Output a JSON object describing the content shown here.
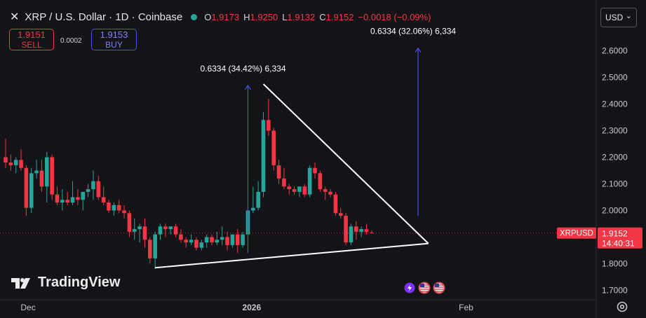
{
  "header": {
    "symbol_title": "XRP / U.S. Dollar · 1D · Coinbase",
    "ohlc": [
      {
        "k": "O",
        "v": "1.9173"
      },
      {
        "k": "H",
        "v": "1.9250"
      },
      {
        "k": "L",
        "v": "1.9132"
      },
      {
        "k": "C",
        "v": "1.9152"
      }
    ],
    "change": "−0.0018 (−0.09%)"
  },
  "trade": {
    "sell_price": "1.9151",
    "sell_label": "SELL",
    "buy_price": "1.9153",
    "buy_label": "BUY",
    "spread": "0.0002"
  },
  "currency": "USD",
  "brand": "TradingView",
  "colors": {
    "background": "#141418",
    "up": "#26a69a",
    "down": "#f23645",
    "measure": "#4b4df0",
    "trendline": "#ffffff",
    "price_tag": "#f23645"
  },
  "chart_data": {
    "type": "candlestick",
    "symbol": "XRPUSD",
    "timeframe": "1D",
    "x_ticks": [
      "Dec",
      "2026",
      "Feb"
    ],
    "y_ticks": [
      "1.7000",
      "1.8000",
      "1.9000",
      "2.0000",
      "2.1000",
      "2.2000",
      "2.3000",
      "2.4000",
      "2.5000",
      "2.6000"
    ],
    "ylim": [
      1.66,
      2.74
    ],
    "last_price": "1.9152",
    "last_label": "XRPUSD",
    "countdown": "14:40:31",
    "candles": [
      [
        2.2,
        2.27,
        2.16,
        2.18
      ],
      [
        2.18,
        2.21,
        2.15,
        2.17
      ],
      [
        2.17,
        2.2,
        2.14,
        2.19
      ],
      [
        2.19,
        2.23,
        2.15,
        2.16
      ],
      [
        2.16,
        2.17,
        1.98,
        2.01
      ],
      [
        2.01,
        2.16,
        1.99,
        2.14
      ],
      [
        2.14,
        2.19,
        2.12,
        2.15
      ],
      [
        2.15,
        2.19,
        2.07,
        2.09
      ],
      [
        2.09,
        2.22,
        2.03,
        2.2
      ],
      [
        2.2,
        2.21,
        2.04,
        2.06
      ],
      [
        2.06,
        2.09,
        2.02,
        2.03
      ],
      [
        2.03,
        2.08,
        2.0,
        2.04
      ],
      [
        2.04,
        2.07,
        2.02,
        2.03
      ],
      [
        2.03,
        2.11,
        2.02,
        2.05
      ],
      [
        2.05,
        2.08,
        2.02,
        2.04
      ],
      [
        2.04,
        2.07,
        2.0,
        2.07
      ],
      [
        2.07,
        2.1,
        2.05,
        2.08
      ],
      [
        2.08,
        2.15,
        2.04,
        2.11
      ],
      [
        2.11,
        2.13,
        2.04,
        2.05
      ],
      [
        2.05,
        2.09,
        2.02,
        2.03
      ],
      [
        2.03,
        2.04,
        1.99,
        2.0
      ],
      [
        2.0,
        2.03,
        1.98,
        2.02
      ],
      [
        2.02,
        2.04,
        1.99,
        2.0
      ],
      [
        2.0,
        2.02,
        1.97,
        1.99
      ],
      [
        1.99,
        2.0,
        1.9,
        1.92
      ],
      [
        1.92,
        1.97,
        1.89,
        1.93
      ],
      [
        1.93,
        1.95,
        1.88,
        1.94
      ],
      [
        1.94,
        1.97,
        1.86,
        1.89
      ],
      [
        1.89,
        1.9,
        1.8,
        1.82
      ],
      [
        1.82,
        1.92,
        1.78,
        1.91
      ],
      [
        1.91,
        1.95,
        1.89,
        1.94
      ],
      [
        1.94,
        1.95,
        1.9,
        1.93
      ],
      [
        1.93,
        1.94,
        1.91,
        1.94
      ],
      [
        1.94,
        1.95,
        1.9,
        1.91
      ],
      [
        1.91,
        1.93,
        1.88,
        1.89
      ],
      [
        1.89,
        1.9,
        1.86,
        1.88
      ],
      [
        1.88,
        1.91,
        1.87,
        1.89
      ],
      [
        1.89,
        1.9,
        1.85,
        1.86
      ],
      [
        1.86,
        1.89,
        1.85,
        1.88
      ],
      [
        1.88,
        1.91,
        1.86,
        1.9
      ],
      [
        1.9,
        1.91,
        1.87,
        1.88
      ],
      [
        1.88,
        1.92,
        1.87,
        1.89
      ],
      [
        1.89,
        1.94,
        1.87,
        1.9
      ],
      [
        1.9,
        1.92,
        1.85,
        1.87
      ],
      [
        1.87,
        1.91,
        1.86,
        1.91
      ],
      [
        1.91,
        1.93,
        1.84,
        1.87
      ],
      [
        1.87,
        1.92,
        1.86,
        1.91
      ],
      [
        1.91,
        2.01,
        1.9,
        2.0
      ],
      [
        2.0,
        2.09,
        1.99,
        2.01
      ],
      [
        2.01,
        2.11,
        2.0,
        2.07
      ],
      [
        2.07,
        2.37,
        2.05,
        2.34
      ],
      [
        2.34,
        2.42,
        2.28,
        2.3
      ],
      [
        2.3,
        2.31,
        2.15,
        2.17
      ],
      [
        2.17,
        2.19,
        2.1,
        2.12
      ],
      [
        2.12,
        2.16,
        2.08,
        2.09
      ],
      [
        2.09,
        2.1,
        2.06,
        2.08
      ],
      [
        2.08,
        2.09,
        2.06,
        2.07
      ],
      [
        2.07,
        2.09,
        2.05,
        2.09
      ],
      [
        2.09,
        2.1,
        2.05,
        2.06
      ],
      [
        2.06,
        2.17,
        2.05,
        2.16
      ],
      [
        2.16,
        2.18,
        2.12,
        2.14
      ],
      [
        2.14,
        2.15,
        2.07,
        2.08
      ],
      [
        2.08,
        2.09,
        2.04,
        2.07
      ],
      [
        2.07,
        2.08,
        2.05,
        2.06
      ],
      [
        2.06,
        2.07,
        1.98,
        1.99
      ],
      [
        1.99,
        2.01,
        1.97,
        1.98
      ],
      [
        1.98,
        1.99,
        1.87,
        1.88
      ],
      [
        1.88,
        1.95,
        1.87,
        1.94
      ],
      [
        1.94,
        1.96,
        1.89,
        1.92
      ],
      [
        1.92,
        1.94,
        1.9,
        1.93
      ],
      [
        1.93,
        1.95,
        1.91,
        1.92
      ],
      [
        1.9173,
        1.925,
        1.9132,
        1.9152
      ]
    ],
    "annotations": [
      {
        "text": "0.6334 (34.42%) 6,334",
        "from_price": 1.84,
        "to_price": 2.47
      },
      {
        "text": "0.6334 (32.06%) 6,334",
        "from_price": 1.98,
        "to_price": 2.61
      }
    ],
    "trendlines": [
      {
        "name": "support",
        "from": {
          "bar": 29,
          "price": 1.785
        },
        "to": {
          "bar": 82,
          "price": 1.876
        }
      },
      {
        "name": "resistance",
        "from": {
          "bar": 50,
          "price": 2.475
        },
        "to": {
          "bar": 82,
          "price": 1.876
        }
      }
    ],
    "event_icons": [
      "lightning-icon",
      "us-flag-icon",
      "us-flag-icon"
    ]
  }
}
